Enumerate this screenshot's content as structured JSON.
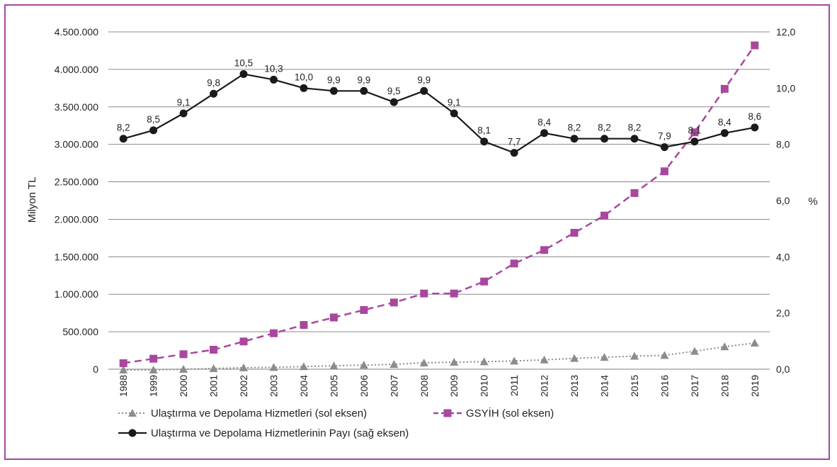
{
  "chart_data": {
    "type": "line",
    "y_left": {
      "label": "Milyon TL",
      "range": [
        0,
        4500000
      ],
      "ticks": [
        0,
        500000,
        1000000,
        1500000,
        2000000,
        2500000,
        3000000,
        3500000,
        4000000,
        4500000
      ],
      "tick_labels": [
        "0",
        "500.000",
        "1.000.000",
        "1.500.000",
        "2.000.000",
        "2.500.000",
        "3.000.000",
        "3.500.000",
        "4.000.000",
        "4.500.000"
      ]
    },
    "y_right": {
      "label": "%",
      "range": [
        0,
        12
      ],
      "ticks": [
        0,
        2,
        4,
        6,
        8,
        10,
        12
      ],
      "tick_labels": [
        "0,0",
        "2,0",
        "4,0",
        "6,0",
        "8,0",
        "10,0",
        "12,0"
      ]
    },
    "categories": [
      "1988",
      "1999",
      "2000",
      "2001",
      "2002",
      "2003",
      "2004",
      "2005",
      "2006",
      "2007",
      "2008",
      "2009",
      "2010",
      "2011",
      "2012",
      "2013",
      "2014",
      "2015",
      "2016",
      "2017",
      "2018",
      "2019"
    ],
    "grid": "horizontal",
    "legend_position": "bottom-left",
    "series": [
      {
        "name": "Ulaştırma ve Depolama Hizmetleri (sol eksen)",
        "axis": "left",
        "style": "dotted",
        "marker": "triangle",
        "color": "#8c8c8c",
        "values": [
          -10000,
          -10000,
          0,
          10000,
          20000,
          25000,
          35000,
          45000,
          55000,
          65000,
          85000,
          95000,
          100000,
          110000,
          125000,
          145000,
          160000,
          175000,
          185000,
          240000,
          300000,
          350000
        ]
      },
      {
        "name": "GSYİH (sol eksen)",
        "axis": "left",
        "style": "dashed",
        "marker": "square",
        "color": "#a8479e",
        "values": [
          80000,
          140000,
          200000,
          260000,
          370000,
          480000,
          590000,
          690000,
          790000,
          890000,
          1010000,
          1010000,
          1170000,
          1410000,
          1590000,
          1820000,
          2050000,
          2350000,
          2640000,
          3160000,
          3740000,
          4320000
        ]
      },
      {
        "name": "Ulaştırma ve Depolama Hizmetlerinin Payı (sağ eksen)",
        "axis": "right",
        "style": "solid",
        "marker": "circle",
        "color": "#1a1a1a",
        "values": [
          8.2,
          8.5,
          9.1,
          9.8,
          10.5,
          10.3,
          10.0,
          9.9,
          9.9,
          9.5,
          9.9,
          9.1,
          8.1,
          7.7,
          8.4,
          8.2,
          8.2,
          8.2,
          7.9,
          8.1,
          8.4,
          8.6
        ],
        "value_labels": [
          "8,2",
          "8,5",
          "9,1",
          "9,8",
          "10,5",
          "10,3",
          "10,0",
          "9,9",
          "9,9",
          "9,5",
          "9,9",
          "9,1",
          "8,1",
          "7,7",
          "8,4",
          "8,2",
          "8,2",
          "8,2",
          "7,9",
          "8,1",
          "8,4",
          "8,6"
        ]
      }
    ]
  }
}
